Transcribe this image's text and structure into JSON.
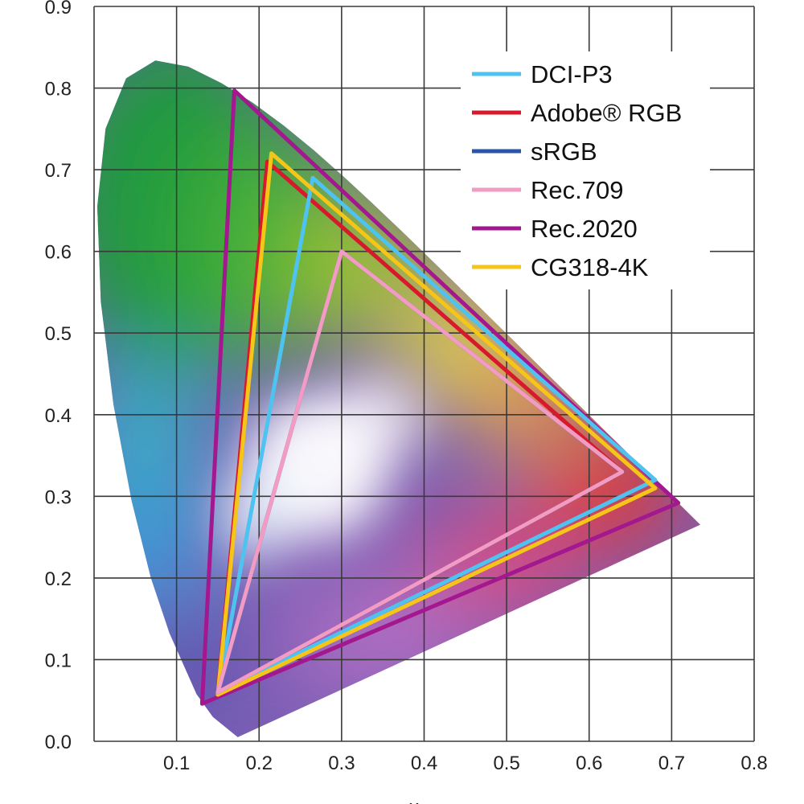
{
  "chart_data": {
    "type": "scatter",
    "title": "",
    "xlabel": "x",
    "ylabel": "",
    "xlim": [
      0.0,
      0.8
    ],
    "ylim": [
      0.0,
      0.9
    ],
    "grid": true,
    "legend_position": "top-right",
    "x_ticks": [
      "0.1",
      "0.2",
      "0.3",
      "0.4",
      "0.5",
      "0.6",
      "0.7",
      "0.8"
    ],
    "y_ticks": [
      "0.0",
      "0.1",
      "0.2",
      "0.3",
      "0.4",
      "0.5",
      "0.6",
      "0.7",
      "0.8",
      "0.9"
    ],
    "spectral_locus": [
      [
        0.1741,
        0.005
      ],
      [
        0.144,
        0.0297
      ],
      [
        0.1241,
        0.0578
      ],
      [
        0.0913,
        0.1327
      ],
      [
        0.0687,
        0.2007
      ],
      [
        0.0454,
        0.295
      ],
      [
        0.0235,
        0.4127
      ],
      [
        0.0082,
        0.5384
      ],
      [
        0.0039,
        0.6548
      ],
      [
        0.0139,
        0.7502
      ],
      [
        0.0389,
        0.812
      ],
      [
        0.0743,
        0.8338
      ],
      [
        0.1142,
        0.8262
      ],
      [
        0.1547,
        0.8059
      ],
      [
        0.1929,
        0.7816
      ],
      [
        0.2296,
        0.7543
      ],
      [
        0.2658,
        0.7243
      ],
      [
        0.3016,
        0.6923
      ],
      [
        0.3373,
        0.6589
      ],
      [
        0.3731,
        0.6245
      ],
      [
        0.4087,
        0.5896
      ],
      [
        0.4441,
        0.5547
      ],
      [
        0.4788,
        0.5202
      ],
      [
        0.5125,
        0.4866
      ],
      [
        0.5448,
        0.4544
      ],
      [
        0.5752,
        0.4242
      ],
      [
        0.6029,
        0.3965
      ],
      [
        0.627,
        0.3725
      ],
      [
        0.6482,
        0.3514
      ],
      [
        0.6658,
        0.334
      ],
      [
        0.6801,
        0.3197
      ],
      [
        0.6915,
        0.3083
      ],
      [
        0.7006,
        0.2993
      ],
      [
        0.7079,
        0.292
      ],
      [
        0.7347,
        0.2653
      ]
    ],
    "series": [
      {
        "name": "DCI-P3",
        "color": "#4fc3f0",
        "points": [
          [
            0.68,
            0.32
          ],
          [
            0.265,
            0.69
          ],
          [
            0.15,
            0.06
          ]
        ]
      },
      {
        "name": "Adobe® RGB",
        "color": "#d7192b",
        "points": [
          [
            0.64,
            0.33
          ],
          [
            0.21,
            0.71
          ],
          [
            0.15,
            0.06
          ]
        ]
      },
      {
        "name": "sRGB",
        "color": "#2a55a8",
        "points": [
          [
            0.64,
            0.33
          ],
          [
            0.3,
            0.6
          ],
          [
            0.15,
            0.06
          ]
        ]
      },
      {
        "name": "Rec.709",
        "color": "#f29bc3",
        "points": [
          [
            0.64,
            0.33
          ],
          [
            0.3,
            0.6
          ],
          [
            0.15,
            0.06
          ]
        ]
      },
      {
        "name": "Rec.2020",
        "color": "#a3178f",
        "points": [
          [
            0.708,
            0.292
          ],
          [
            0.17,
            0.797
          ],
          [
            0.131,
            0.046
          ]
        ]
      },
      {
        "name": "CG318-4K",
        "color": "#f5c518",
        "points": [
          [
            0.68,
            0.31
          ],
          [
            0.215,
            0.72
          ],
          [
            0.15,
            0.057
          ]
        ]
      }
    ]
  }
}
